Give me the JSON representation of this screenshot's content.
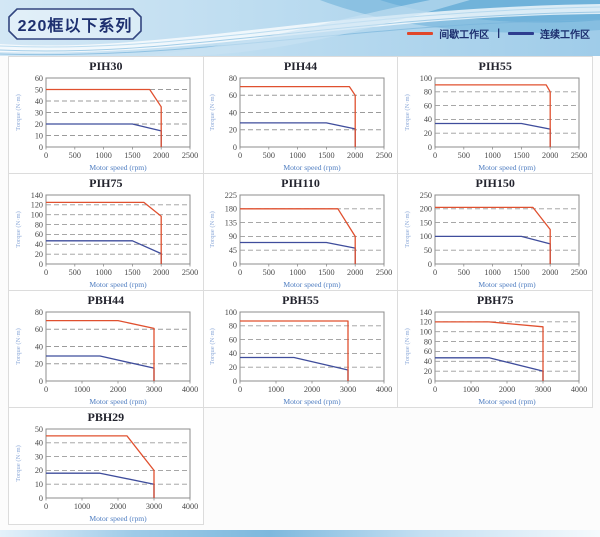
{
  "page": {
    "title": "220框以下系列",
    "legend": {
      "intermittent_label": "间歇工作区",
      "separator": "|",
      "continuous_label": "连续工作区",
      "intermittent_color": "#e0472b",
      "continuous_color": "#2e3d8f"
    }
  },
  "colors": {
    "series_red": "#e0502f",
    "series_blue": "#3f4d9c",
    "grid_dash": "#9b9b9b",
    "axis_frame": "#8c8c8c",
    "tick_text": "#4a4a4a",
    "xlabel_text": "#4d7cc0",
    "ylabel_text": "#8ba8d8",
    "cell_border": "#dcdcdc"
  },
  "chart_data": [
    {
      "type": "line",
      "title": "PIH30",
      "xlabel": "Motor speed (rpm)",
      "ylabel": "Torque (N·m)",
      "xlim": [
        0,
        2500
      ],
      "xticks": [
        0,
        500,
        1000,
        1500,
        2000,
        2500
      ],
      "ylim": [
        0,
        60
      ],
      "yticks": [
        0,
        10,
        20,
        30,
        40,
        50,
        60
      ],
      "grid": "dashed-horizontal",
      "legend_position": "none",
      "series": [
        {
          "name": "间歇工作区",
          "color": "#e0502f",
          "points": [
            [
              0,
              50
            ],
            [
              1800,
              50
            ],
            [
              2000,
              35
            ],
            [
              2000,
              0
            ]
          ]
        },
        {
          "name": "连续工作区",
          "color": "#3f4d9c",
          "points": [
            [
              0,
              20
            ],
            [
              1500,
              20
            ],
            [
              2000,
              14
            ],
            [
              2000,
              0
            ]
          ]
        }
      ]
    },
    {
      "type": "line",
      "title": "PIH44",
      "xlabel": "Motor speed (rpm)",
      "ylabel": "Torque (N·m)",
      "xlim": [
        0,
        2500
      ],
      "xticks": [
        0,
        500,
        1000,
        1500,
        2000,
        2500
      ],
      "ylim": [
        0,
        80
      ],
      "yticks": [
        0,
        20,
        40,
        60,
        80
      ],
      "grid": "dashed-horizontal",
      "legend_position": "none",
      "series": [
        {
          "name": "间歇工作区",
          "color": "#e0502f",
          "points": [
            [
              0,
              70
            ],
            [
              1900,
              70
            ],
            [
              2000,
              60
            ],
            [
              2000,
              0
            ]
          ]
        },
        {
          "name": "连续工作区",
          "color": "#3f4d9c",
          "points": [
            [
              0,
              28
            ],
            [
              1500,
              28
            ],
            [
              2000,
              21
            ],
            [
              2000,
              0
            ]
          ]
        }
      ]
    },
    {
      "type": "line",
      "title": "PIH55",
      "xlabel": "Motor speed (rpm)",
      "ylabel": "Torque (N·m)",
      "xlim": [
        0,
        2500
      ],
      "xticks": [
        0,
        500,
        1000,
        1500,
        2000,
        2500
      ],
      "ylim": [
        0,
        100
      ],
      "yticks": [
        0,
        20,
        40,
        60,
        80,
        100
      ],
      "grid": "dashed-horizontal",
      "legend_position": "none",
      "series": [
        {
          "name": "间歇工作区",
          "color": "#e0502f",
          "points": [
            [
              0,
              90
            ],
            [
              1930,
              90
            ],
            [
              2000,
              80
            ],
            [
              2000,
              0
            ]
          ]
        },
        {
          "name": "连续工作区",
          "color": "#3f4d9c",
          "points": [
            [
              0,
              34
            ],
            [
              1500,
              34
            ],
            [
              2000,
              26
            ],
            [
              2000,
              0
            ]
          ]
        }
      ]
    },
    {
      "type": "line",
      "title": "PIH75",
      "xlabel": "Motor speed (rpm)",
      "ylabel": "Torque (N·m)",
      "xlim": [
        0,
        2500
      ],
      "xticks": [
        0,
        500,
        1000,
        1500,
        2000,
        2500
      ],
      "ylim": [
        0,
        140
      ],
      "yticks": [
        0,
        20,
        40,
        60,
        80,
        100,
        120,
        140
      ],
      "grid": "dashed-horizontal",
      "legend_position": "none",
      "series": [
        {
          "name": "间歇工作区",
          "color": "#e0502f",
          "points": [
            [
              0,
              125
            ],
            [
              1700,
              125
            ],
            [
              2000,
              97
            ],
            [
              2000,
              0
            ]
          ]
        },
        {
          "name": "连续工作区",
          "color": "#3f4d9c",
          "points": [
            [
              0,
              47
            ],
            [
              1500,
              47
            ],
            [
              2000,
              21
            ],
            [
              2000,
              0
            ]
          ]
        }
      ]
    },
    {
      "type": "line",
      "title": "PIH110",
      "xlabel": "Motor speed (rpm)",
      "ylabel": "Torque (N·m)",
      "xlim": [
        0,
        2500
      ],
      "xticks": [
        0,
        500,
        1000,
        1500,
        2000,
        2500
      ],
      "ylim": [
        0,
        225
      ],
      "yticks": [
        0,
        45,
        90,
        135,
        180,
        225
      ],
      "grid": "dashed-horizontal",
      "legend_position": "none",
      "series": [
        {
          "name": "间歇工作区",
          "color": "#e0502f",
          "points": [
            [
              0,
              180
            ],
            [
              1700,
              180
            ],
            [
              2000,
              90
            ],
            [
              2000,
              0
            ]
          ]
        },
        {
          "name": "连续工作区",
          "color": "#3f4d9c",
          "points": [
            [
              0,
              70
            ],
            [
              1500,
              70
            ],
            [
              2000,
              52
            ],
            [
              2000,
              0
            ]
          ]
        }
      ]
    },
    {
      "type": "line",
      "title": "PIH150",
      "xlabel": "Motor speed (rpm)",
      "ylabel": "Torque (N·m)",
      "xlim": [
        0,
        2500
      ],
      "xticks": [
        0,
        500,
        1000,
        1500,
        2000,
        2500
      ],
      "ylim": [
        0,
        250
      ],
      "yticks": [
        0,
        50,
        100,
        150,
        200,
        250
      ],
      "grid": "dashed-horizontal",
      "legend_position": "none",
      "series": [
        {
          "name": "间歇工作区",
          "color": "#e0502f",
          "points": [
            [
              0,
              205
            ],
            [
              1700,
              205
            ],
            [
              2000,
              125
            ],
            [
              2000,
              0
            ]
          ]
        },
        {
          "name": "连续工作区",
          "color": "#3f4d9c",
          "points": [
            [
              0,
              100
            ],
            [
              1500,
              100
            ],
            [
              2000,
              73
            ],
            [
              2000,
              0
            ]
          ]
        }
      ]
    },
    {
      "type": "line",
      "title": "PBH44",
      "xlabel": "Motor speed (rpm)",
      "ylabel": "Torque (N·m)",
      "xlim": [
        0,
        4000
      ],
      "xticks": [
        0,
        1000,
        2000,
        3000,
        4000
      ],
      "ylim": [
        0,
        80
      ],
      "yticks": [
        0,
        20,
        40,
        60,
        80
      ],
      "grid": "dashed-horizontal",
      "legend_position": "none",
      "series": [
        {
          "name": "间歇工作区",
          "color": "#e0502f",
          "points": [
            [
              0,
              70
            ],
            [
              2000,
              70
            ],
            [
              3000,
              61
            ],
            [
              3000,
              0
            ]
          ]
        },
        {
          "name": "连续工作区",
          "color": "#3f4d9c",
          "points": [
            [
              0,
              29
            ],
            [
              1500,
              29
            ],
            [
              3000,
              15
            ],
            [
              3000,
              0
            ]
          ]
        }
      ]
    },
    {
      "type": "line",
      "title": "PBH55",
      "xlabel": "Motor speed (rpm)",
      "ylabel": "Torque (N·m)",
      "xlim": [
        0,
        4000
      ],
      "xticks": [
        0,
        1000,
        2000,
        3000,
        4000
      ],
      "ylim": [
        0,
        100
      ],
      "yticks": [
        0,
        20,
        40,
        60,
        80,
        100
      ],
      "grid": "dashed-horizontal",
      "legend_position": "none",
      "series": [
        {
          "name": "间歇工作区",
          "color": "#e0502f",
          "points": [
            [
              0,
              87
            ],
            [
              3000,
              87
            ],
            [
              3000,
              0
            ]
          ]
        },
        {
          "name": "连续工作区",
          "color": "#3f4d9c",
          "points": [
            [
              0,
              34
            ],
            [
              1500,
              34
            ],
            [
              3000,
              16
            ],
            [
              3000,
              0
            ]
          ]
        }
      ]
    },
    {
      "type": "line",
      "title": "PBH75",
      "xlabel": "Motor speed (rpm)",
      "ylabel": "Torque (N·m)",
      "xlim": [
        0,
        4000
      ],
      "xticks": [
        0,
        1000,
        2000,
        3000,
        4000
      ],
      "ylim": [
        0,
        140
      ],
      "yticks": [
        0,
        20,
        40,
        60,
        80,
        100,
        120,
        140
      ],
      "grid": "dashed-horizontal",
      "legend_position": "none",
      "series": [
        {
          "name": "间歇工作区",
          "color": "#e0502f",
          "points": [
            [
              0,
              120
            ],
            [
              1500,
              120
            ],
            [
              3000,
              110
            ],
            [
              3000,
              0
            ]
          ]
        },
        {
          "name": "连续工作区",
          "color": "#3f4d9c",
          "points": [
            [
              0,
              47
            ],
            [
              1500,
              47
            ],
            [
              3000,
              20
            ],
            [
              3000,
              0
            ]
          ]
        }
      ]
    },
    {
      "type": "line",
      "title": "PBH29",
      "xlabel": "Motor speed (rpm)",
      "ylabel": "Torque (N·m)",
      "xlim": [
        0,
        4000
      ],
      "xticks": [
        0,
        1000,
        2000,
        3000,
        4000
      ],
      "ylim": [
        0,
        50
      ],
      "yticks": [
        0,
        10,
        20,
        30,
        40,
        50
      ],
      "grid": "dashed-horizontal",
      "legend_position": "none",
      "series": [
        {
          "name": "间歇工作区",
          "color": "#e0502f",
          "points": [
            [
              0,
              45
            ],
            [
              2250,
              45
            ],
            [
              3000,
              20
            ],
            [
              3000,
              0
            ]
          ]
        },
        {
          "name": "连续工作区",
          "color": "#3f4d9c",
          "points": [
            [
              0,
              18
            ],
            [
              1500,
              18
            ],
            [
              3000,
              10
            ],
            [
              3000,
              0
            ]
          ]
        }
      ]
    }
  ]
}
